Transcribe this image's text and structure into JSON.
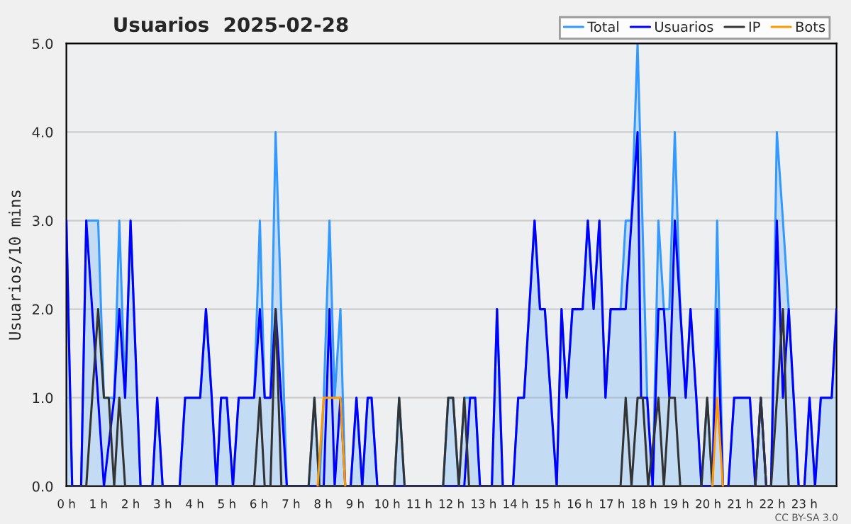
{
  "chart_data": {
    "type": "line",
    "title": "Usuarios  2025-02-28",
    "ylabel": "Usuarios/10 mins",
    "xlim": [
      0,
      24
    ],
    "xticks": [
      {
        "value": 0,
        "label": "0 h"
      },
      {
        "value": 1,
        "label": "1 h"
      },
      {
        "value": 2,
        "label": "2 h"
      },
      {
        "value": 3,
        "label": "3 h"
      },
      {
        "value": 4,
        "label": "4 h"
      },
      {
        "value": 5,
        "label": "5 h"
      },
      {
        "value": 6,
        "label": "6 h"
      },
      {
        "value": 7,
        "label": "7 h"
      },
      {
        "value": 8,
        "label": "8 h"
      },
      {
        "value": 9,
        "label": "9 h"
      },
      {
        "value": 10,
        "label": "10 h"
      },
      {
        "value": 11,
        "label": "11 h"
      },
      {
        "value": 12,
        "label": "12 h"
      },
      {
        "value": 13,
        "label": "13 h"
      },
      {
        "value": 14,
        "label": "14 h"
      },
      {
        "value": 15,
        "label": "15 h"
      },
      {
        "value": 16,
        "label": "16 h"
      },
      {
        "value": 17,
        "label": "17 h"
      },
      {
        "value": 18,
        "label": "18 h"
      },
      {
        "value": 19,
        "label": "19 h"
      },
      {
        "value": 20,
        "label": "20 h"
      },
      {
        "value": 21,
        "label": "21 h"
      },
      {
        "value": 22,
        "label": "22 h"
      },
      {
        "value": 23,
        "label": "23 h"
      }
    ],
    "ylim": [
      0,
      5
    ],
    "yticks": [
      {
        "value": 0,
        "label": "0.0"
      },
      {
        "value": 1,
        "label": "1.0"
      },
      {
        "value": 2,
        "label": "2.0"
      },
      {
        "value": 3,
        "label": "3.0"
      },
      {
        "value": 4,
        "label": "4.0"
      },
      {
        "value": 5,
        "label": "5.0"
      }
    ],
    "grid": "y",
    "legend": "top right",
    "marker": "none",
    "line_style": "solid",
    "annotations": [
      "CC BY-SA 3.0"
    ],
    "series": [
      {
        "name": "Total",
        "type": "area",
        "color": "#3399ff",
        "x": [
          0,
          0.18,
          0.46,
          0.62,
          0.99,
          1.17,
          1.32,
          1.49,
          1.65,
          1.83,
          2.0,
          2.31,
          2.68,
          2.83,
          3.0,
          3.53,
          3.7,
          4.17,
          4.35,
          4.53,
          4.68,
          4.82,
          5.0,
          5.19,
          5.37,
          5.85,
          6.03,
          6.18,
          6.36,
          6.52,
          6.87,
          7.55,
          7.73,
          7.88,
          8.02,
          8.2,
          8.36,
          8.54,
          8.69,
          8.86,
          9.04,
          9.22,
          9.39,
          9.51,
          9.69,
          10.22,
          10.37,
          10.54,
          11.74,
          11.9,
          12.05,
          12.23,
          12.4,
          12.58,
          12.74,
          12.89,
          13.26,
          13.42,
          13.6,
          13.92,
          14.08,
          14.26,
          14.59,
          14.76,
          14.91,
          15.28,
          15.43,
          15.59,
          15.77,
          16.09,
          16.25,
          16.43,
          16.61,
          16.8,
          16.96,
          17.27,
          17.43,
          17.61,
          17.8,
          18.1,
          18.27,
          18.45,
          18.62,
          18.79,
          18.96,
          19.13,
          19.3,
          19.45,
          19.63,
          19.79,
          19.97,
          20.13,
          20.28,
          20.46,
          20.63,
          20.81,
          21.3,
          21.47,
          21.64,
          21.81,
          21.96,
          22.14,
          22.33,
          22.51,
          22.82,
          23.0,
          23.16,
          23.33,
          23.51,
          23.85,
          24.0
        ],
        "values": [
          3,
          0,
          0,
          3,
          3,
          1,
          1,
          1,
          3,
          1,
          3,
          0,
          0,
          1,
          0,
          0,
          1,
          1,
          2,
          1,
          0,
          1,
          1,
          0,
          1,
          1,
          3,
          1,
          1,
          4,
          0,
          0,
          1,
          0,
          1,
          3,
          1,
          2,
          0,
          0,
          1,
          0,
          1,
          1,
          0,
          0,
          1,
          0,
          0,
          1,
          1,
          0,
          1,
          1,
          1,
          0,
          0,
          2,
          0,
          0,
          1,
          1,
          3,
          2,
          2,
          0,
          2,
          1,
          2,
          2,
          3,
          2,
          3,
          1,
          2,
          2,
          3,
          3,
          5,
          1,
          0,
          3,
          2,
          2,
          4,
          2,
          1,
          2,
          1,
          0,
          1,
          0,
          3,
          0,
          0,
          1,
          1,
          0,
          1,
          0,
          0,
          4,
          3,
          2,
          0,
          0,
          1,
          0,
          1,
          1,
          2
        ]
      },
      {
        "name": "Usuarios",
        "color": "#0000ff",
        "x": [
          0,
          0.18,
          0.46,
          0.62,
          1.17,
          1.49,
          1.65,
          1.83,
          2.0,
          2.31,
          2.68,
          2.83,
          3.0,
          3.53,
          3.7,
          4.17,
          4.35,
          4.53,
          4.68,
          4.82,
          5.0,
          5.19,
          5.37,
          5.85,
          6.03,
          6.18,
          6.36,
          6.52,
          6.87,
          8.02,
          8.2,
          8.36,
          8.54,
          8.69,
          8.86,
          9.04,
          9.22,
          9.39,
          9.51,
          9.69,
          12.4,
          12.58,
          12.74,
          12.89,
          13.26,
          13.42,
          13.6,
          13.92,
          14.08,
          14.26,
          14.59,
          14.76,
          14.91,
          15.28,
          15.43,
          15.59,
          15.77,
          16.09,
          16.25,
          16.43,
          16.61,
          16.8,
          16.96,
          17.43,
          17.61,
          17.8,
          17.91,
          18.1,
          18.27,
          18.45,
          18.62,
          18.79,
          18.96,
          19.13,
          19.3,
          19.45,
          19.63,
          19.79,
          20.13,
          20.28,
          20.46,
          20.63,
          20.81,
          21.3,
          21.47,
          21.64,
          21.81,
          21.96,
          22.14,
          22.33,
          22.51,
          22.82,
          23.0,
          23.16,
          23.33,
          23.51,
          23.85,
          24.0
        ],
        "values": [
          3,
          0,
          0,
          3,
          0,
          1,
          2,
          1,
          3,
          0,
          0,
          1,
          0,
          0,
          1,
          1,
          2,
          1,
          0,
          1,
          1,
          0,
          1,
          1,
          2,
          1,
          1,
          2,
          0,
          0,
          2,
          0,
          1,
          0,
          0,
          1,
          0,
          1,
          1,
          0,
          0,
          1,
          1,
          0,
          0,
          2,
          0,
          0,
          1,
          1,
          3,
          2,
          2,
          0,
          2,
          1,
          2,
          2,
          3,
          2,
          3,
          1,
          2,
          2,
          3,
          4,
          1,
          1,
          0,
          2,
          2,
          1,
          3,
          2,
          1,
          2,
          1,
          0,
          0,
          2,
          0,
          0,
          1,
          1,
          0,
          1,
          0,
          0,
          3,
          1,
          2,
          0,
          0,
          1,
          0,
          1,
          1,
          2
        ]
      },
      {
        "name": "IP",
        "color": "#333333",
        "x": [
          0,
          0.62,
          0.99,
          1.17,
          1.32,
          1.49,
          1.65,
          1.83,
          5.85,
          6.03,
          6.18,
          6.36,
          6.52,
          6.7,
          7.55,
          7.73,
          7.88,
          10.22,
          10.37,
          10.54,
          11.74,
          11.9,
          12.05,
          12.23,
          12.4,
          12.55,
          17.27,
          17.43,
          17.61,
          17.8,
          17.96,
          18.13,
          18.45,
          18.62,
          18.79,
          18.96,
          19.13,
          19.79,
          19.97,
          20.13,
          21.47,
          21.64,
          21.81,
          21.96,
          22.33,
          22.51,
          24.0
        ],
        "values": [
          0,
          0,
          2,
          1,
          1,
          0,
          1,
          0,
          0,
          1,
          0,
          0,
          2,
          0,
          0,
          1,
          0,
          0,
          1,
          0,
          0,
          1,
          1,
          0,
          1,
          0,
          0,
          1,
          0,
          1,
          1,
          0,
          1,
          0,
          1,
          1,
          0,
          0,
          1,
          0,
          0,
          1,
          0,
          0,
          2,
          0,
          0
        ]
      },
      {
        "name": "Bots",
        "color": "#ff9900",
        "x": [
          7.83,
          8.02,
          8.54,
          8.69,
          14.0,
          20.13,
          20.28,
          20.46
        ],
        "values": [
          0,
          1,
          1,
          0,
          null,
          0,
          1,
          0
        ]
      }
    ]
  }
}
